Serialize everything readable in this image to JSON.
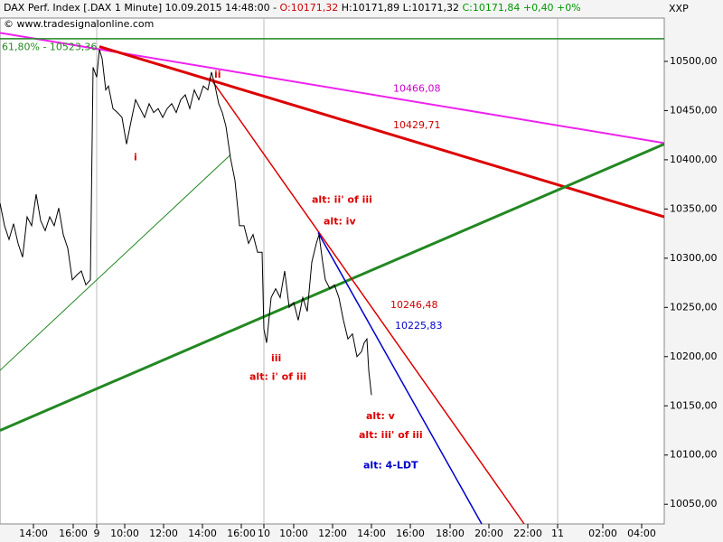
{
  "chart_data": {
    "type": "line",
    "header": [
      {
        "text": "DAX Perf. Index [.DAX  1 Minute] 10.09.2015 14:48:00 - ",
        "color": "#000000"
      },
      {
        "text": "O:10171,32",
        "color": "#cc0000"
      },
      {
        "text": " H:10171,89 L:10171,32",
        "color": "#000000"
      },
      {
        "text": " C:10171,84 +0,40 +0%",
        "color": "#009900"
      }
    ],
    "subtitle": "© www.tradesignalonline.com",
    "axis_title": "XXP",
    "xlim": [
      0,
      147
    ],
    "ylim": [
      10030,
      10544
    ],
    "xticks": [
      {
        "value": 7.4,
        "label": "14:00"
      },
      {
        "value": 16.2,
        "label": "16:00"
      },
      {
        "value": 21.4,
        "label": "9"
      },
      {
        "value": 27.6,
        "label": "10:00"
      },
      {
        "value": 36.2,
        "label": "12:00"
      },
      {
        "value": 44.8,
        "label": "14:00"
      },
      {
        "value": 53.4,
        "label": "16:00"
      },
      {
        "value": 58.4,
        "label": "10"
      },
      {
        "value": 65,
        "label": "10:00"
      },
      {
        "value": 73.6,
        "label": "12:00"
      },
      {
        "value": 82.2,
        "label": "14:00"
      },
      {
        "value": 90.8,
        "label": "16:00"
      },
      {
        "value": 99.6,
        "label": "18:00"
      },
      {
        "value": 108.2,
        "label": "20:00"
      },
      {
        "value": 116.8,
        "label": "22:00"
      },
      {
        "value": 123.4,
        "label": "11"
      },
      {
        "value": 133.4,
        "label": "02:00"
      },
      {
        "value": 142,
        "label": "04:00"
      }
    ],
    "yticks": [
      {
        "value": 10050,
        "label": "10050,00"
      },
      {
        "value": 10100,
        "label": "10100,00"
      },
      {
        "value": 10150,
        "label": "10150,00"
      },
      {
        "value": 10200,
        "label": "10200,00"
      },
      {
        "value": 10250,
        "label": "10250,00"
      },
      {
        "value": 10300,
        "label": "10300,00"
      },
      {
        "value": 10350,
        "label": "10350,00"
      },
      {
        "value": 10400,
        "label": "10400,00"
      },
      {
        "value": 10450,
        "label": "10450,00"
      },
      {
        "value": 10500,
        "label": "10500,00"
      }
    ],
    "series": [
      {
        "color": "#000000",
        "line_width": 1,
        "x": [
          0,
          1,
          2,
          3,
          4,
          5,
          6,
          7,
          8,
          9,
          10,
          11,
          12,
          13,
          14,
          15,
          16,
          17,
          18,
          19,
          20,
          20.6,
          21.4,
          22,
          22.6,
          23.4,
          24,
          25,
          26,
          27,
          28,
          29,
          30,
          31,
          32,
          33,
          34,
          35,
          36,
          37,
          38,
          39,
          40,
          41,
          42,
          43,
          44,
          45,
          46,
          46.8,
          47.6,
          48.4,
          49.2,
          50,
          51,
          52,
          53,
          54,
          55,
          56,
          57,
          58,
          58.4,
          59,
          60,
          61,
          62,
          63,
          64,
          65,
          66,
          67,
          68,
          69,
          70,
          70.6,
          71.4,
          72,
          73,
          74,
          75,
          76,
          77,
          78,
          79,
          80,
          80.6,
          81.2,
          81.6,
          82.2
        ],
        "values": [
          10356,
          10333,
          10319,
          10335,
          10315,
          10301,
          10342,
          10333,
          10365,
          10338,
          10328,
          10342,
          10333,
          10351,
          10324,
          10310,
          10278,
          10283,
          10287,
          10273,
          10278,
          10494,
          10484,
          10512,
          10503,
          10471,
          10475,
          10452,
          10448,
          10443,
          10416,
          10439,
          10461,
          10452,
          10443,
          10457,
          10448,
          10452,
          10443,
          10452,
          10457,
          10448,
          10461,
          10466,
          10452,
          10471,
          10461,
          10475,
          10471,
          10489,
          10475,
          10457,
          10448,
          10434,
          10402,
          10379,
          10333,
          10333,
          10315,
          10324,
          10306,
          10306,
          10228,
          10214,
          10260,
          10269,
          10260,
          10287,
          10250,
          10255,
          10237,
          10260,
          10246,
          10296,
          10315,
          10324,
          10296,
          10278,
          10269,
          10273,
          10260,
          10237,
          10218,
          10223,
          10200,
          10205,
          10214,
          10218,
          10186,
          10161
        ]
      },
      {
        "color": "#ee22ee",
        "line_width": 2,
        "x": [
          0,
          147
        ],
        "values": [
          10529,
          10417
        ]
      },
      {
        "color": "#dd0000",
        "line_width": 3,
        "x": [
          22,
          147
        ],
        "values": [
          10515,
          10342
        ]
      },
      {
        "color": "#228822",
        "line_width": 3,
        "x": [
          0,
          147
        ],
        "values": [
          10125,
          10416
        ]
      },
      {
        "color": "#228822",
        "line_width": 1,
        "x": [
          0,
          51
        ],
        "values": [
          10186,
          10405
        ]
      },
      {
        "color": "#228822",
        "line_width": 1.5,
        "x": [
          0,
          147
        ],
        "values": [
          10523,
          10523
        ]
      },
      {
        "color": "#dd0000",
        "line_width": 1.5,
        "x": [
          46.4,
          116
        ],
        "values": [
          10484,
          10030
        ]
      },
      {
        "color": "#0000cc",
        "line_width": 1.5,
        "x": [
          70.4,
          106.6
        ],
        "values": [
          10326,
          10030
        ]
      }
    ],
    "annotations": [
      {
        "text": "61,80% - 10523,36",
        "x": 0.4,
        "y": 10514,
        "color": "#228822",
        "bold": false
      },
      {
        "text": "10466,08",
        "x": 87,
        "y": 10472,
        "color": "#cc00cc",
        "bold": false
      },
      {
        "text": "10429,71",
        "x": 87,
        "y": 10435,
        "color": "#cc0000",
        "bold": false
      },
      {
        "text": "10246,48",
        "x": 86.4,
        "y": 10252,
        "color": "#cc0000",
        "bold": false
      },
      {
        "text": "10225,83",
        "x": 87.4,
        "y": 10231,
        "color": "#0000cc",
        "bold": false
      },
      {
        "text": "i",
        "x": 29.6,
        "y": 10402,
        "color": "#dd0000",
        "bold": true
      },
      {
        "text": "ii",
        "x": 47.4,
        "y": 10486,
        "color": "#dd0000",
        "bold": true
      },
      {
        "text": "iii",
        "x": 60,
        "y": 10198,
        "color": "#dd0000",
        "bold": true
      },
      {
        "text": "alt: i' of iii",
        "x": 55.2,
        "y": 10179,
        "color": "#dd0000",
        "bold": true
      },
      {
        "text": "alt: ii' of iii",
        "x": 69,
        "y": 10359,
        "color": "#dd0000",
        "bold": true
      },
      {
        "text": "alt: iv",
        "x": 71.6,
        "y": 10337,
        "color": "#dd0000",
        "bold": true
      },
      {
        "text": "alt: v",
        "x": 81,
        "y": 10139,
        "color": "#dd0000",
        "bold": true
      },
      {
        "text": "alt: iii' of iii",
        "x": 79.4,
        "y": 10120,
        "color": "#dd0000",
        "bold": true
      },
      {
        "text": "alt: 4-LDT",
        "x": 80.4,
        "y": 10089,
        "color": "#0000cc",
        "bold": true
      }
    ]
  }
}
